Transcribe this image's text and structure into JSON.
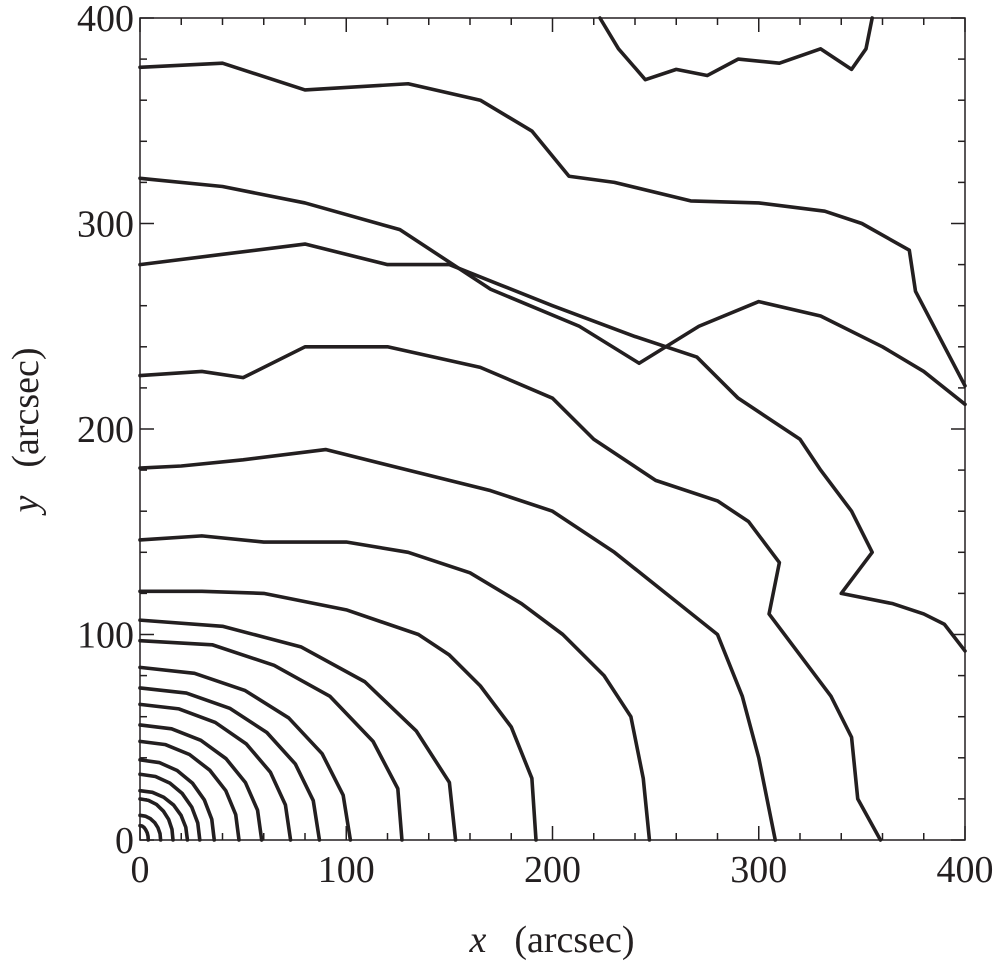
{
  "chart_data": {
    "type": "contour",
    "xlabel_var": "x",
    "xlabel_unit": "(arcsec)",
    "ylabel_var": "y",
    "ylabel_unit": "(arcsec)",
    "xlim": [
      0,
      400
    ],
    "ylim": [
      0,
      400
    ],
    "xticks": [
      0,
      100,
      200,
      300,
      400
    ],
    "yticks": [
      0,
      100,
      200,
      300,
      400
    ],
    "xminorticks": [
      20,
      40,
      60,
      80,
      120,
      140,
      160,
      180,
      220,
      240,
      260,
      280,
      320,
      340,
      360,
      380
    ],
    "yminorticks": [
      20,
      40,
      60,
      80,
      120,
      140,
      160,
      180,
      220,
      240,
      260,
      280,
      320,
      340,
      360,
      380
    ],
    "color": "#231f20",
    "series": [
      {
        "x": [
          4,
          3.9,
          3.5,
          2.8,
          2,
          1,
          0
        ],
        "y": [
          0,
          1.8,
          3.5,
          4.9,
          6.1,
          6.8,
          7
        ]
      },
      {
        "x": [
          10,
          9.7,
          8.7,
          7.1,
          5,
          2.6,
          0
        ],
        "y": [
          0,
          3.1,
          6,
          8.5,
          10.4,
          11.6,
          12
        ]
      },
      {
        "x": [
          16,
          15.5,
          13.9,
          11.3,
          8,
          4.1,
          0
        ],
        "y": [
          0,
          5.2,
          10,
          14.1,
          17.3,
          19.3,
          20
        ]
      },
      {
        "x": [
          23,
          22.2,
          19.9,
          16.3,
          11.5,
          6,
          0
        ],
        "y": [
          0,
          6.2,
          12,
          17,
          20.8,
          23.2,
          24
        ]
      },
      {
        "x": [
          29,
          28,
          25.1,
          20.5,
          14.5,
          7.5,
          0
        ],
        "y": [
          0,
          8.3,
          16,
          22.6,
          27.7,
          30.9,
          32
        ]
      },
      {
        "x": [
          36,
          34.8,
          31.2,
          25.5,
          18,
          9.3,
          0
        ],
        "y": [
          0,
          10.1,
          19.5,
          27.6,
          33.8,
          37.7,
          39
        ]
      },
      {
        "x": [
          48,
          46.4,
          41.6,
          33.9,
          24,
          12.4,
          0
        ],
        "y": [
          0,
          12.4,
          24,
          33.9,
          41.6,
          46.4,
          48
        ]
      },
      {
        "x": [
          59,
          57,
          51.1,
          41.7,
          29.5,
          15.3,
          0
        ],
        "y": [
          0,
          14.5,
          28,
          39.6,
          48.5,
          54.1,
          56
        ]
      },
      {
        "x": [
          73,
          70.5,
          63.2,
          51.6,
          36.5,
          18.9,
          0
        ],
        "y": [
          0,
          17.1,
          33,
          46.7,
          57.2,
          63.8,
          66
        ]
      },
      {
        "x": [
          87,
          84,
          75.3,
          61.5,
          43.5,
          22.5,
          0
        ],
        "y": [
          0,
          19.2,
          37,
          52.3,
          64.1,
          71.5,
          74
        ]
      },
      {
        "x": [
          102,
          98.5,
          88.3,
          72.1,
          51,
          26.4,
          0
        ],
        "y": [
          0,
          21.8,
          42,
          59.4,
          72.7,
          81.1,
          84
        ]
      },
      {
        "x": [
          127,
          125,
          113,
          92,
          65,
          35,
          0
        ],
        "y": [
          0,
          25,
          48,
          70,
          85,
          95,
          97
        ]
      },
      {
        "x": [
          153,
          150,
          134,
          109,
          78,
          40,
          0
        ],
        "y": [
          0,
          28,
          53,
          77,
          94,
          104,
          107
        ]
      },
      {
        "x": [
          192,
          190,
          180,
          165,
          150,
          135,
          100,
          60,
          30,
          0
        ],
        "y": [
          0,
          30,
          55,
          75,
          90,
          100,
          112,
          120,
          121,
          121
        ]
      },
      {
        "x": [
          247,
          244,
          238,
          225,
          205,
          185,
          160,
          130,
          100,
          60,
          30,
          0
        ],
        "y": [
          0,
          30,
          60,
          80,
          100,
          115,
          130,
          140,
          145,
          145,
          148,
          146
        ]
      },
      {
        "x": [
          308,
          300,
          292,
          280,
          255,
          230,
          200,
          170,
          130,
          90,
          50,
          20,
          0
        ],
        "y": [
          0,
          40,
          70,
          100,
          120,
          140,
          160,
          170,
          180,
          190,
          185,
          182,
          181
        ]
      },
      {
        "x": [
          359,
          348,
          345,
          335,
          320,
          305,
          310,
          295,
          280,
          250,
          220,
          200,
          165,
          120,
          80,
          50,
          30,
          0
        ],
        "y": [
          0,
          20,
          50,
          70,
          90,
          110,
          135,
          155,
          165,
          175,
          195,
          215,
          230,
          240,
          240,
          225,
          228,
          226
        ]
      },
      {
        "x": [
          400,
          390,
          380,
          365,
          340,
          355,
          345,
          330,
          320,
          305,
          290,
          270,
          240,
          200,
          175,
          150,
          120,
          80,
          40,
          0
        ],
        "y": [
          92,
          105,
          110,
          115,
          120,
          140,
          160,
          180,
          195,
          205,
          215,
          235,
          245,
          260,
          270,
          280,
          280,
          290,
          285,
          280
        ]
      },
      {
        "x": [
          400,
          380,
          360,
          330,
          300,
          271,
          242,
          213,
          170,
          126,
          80,
          40,
          0
        ],
        "y": [
          212,
          228,
          240,
          255,
          262,
          250,
          232,
          250,
          268,
          297,
          310,
          318,
          322
        ]
      },
      {
        "x": [
          400,
          376,
          373,
          350,
          332,
          300,
          267,
          230,
          208,
          190,
          165,
          130,
          80,
          40,
          0
        ],
        "y": [
          221,
          267,
          287,
          300,
          306,
          310,
          311,
          320,
          323,
          345,
          360,
          368,
          365,
          378,
          376
        ]
      },
      {
        "x": [
          223,
          232,
          245,
          260,
          275,
          290,
          310,
          330,
          345,
          352,
          355
        ],
        "y": [
          400,
          385,
          370,
          375,
          372,
          380,
          378,
          385,
          375,
          385,
          400
        ]
      }
    ]
  }
}
